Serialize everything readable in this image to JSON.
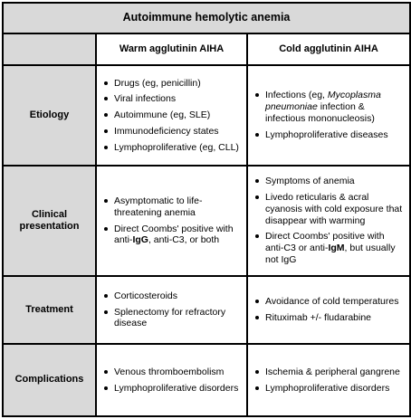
{
  "title": "Autoimmune hemolytic anemia",
  "columns": [
    "Warm agglutinin AIHA",
    "Cold agglutinin AIHA"
  ],
  "rows": [
    {
      "label": "Etiology",
      "warm": [
        "Drugs (eg, penicillin)",
        "Viral infections",
        "Autoimmune (eg, SLE)",
        "Immunodeficiency states",
        "Lymphoproliferative (eg, CLL)"
      ],
      "cold": [
        {
          "before": "Infections (eg, ",
          "em": "Mycoplasma pneumoniae",
          "after": " infection & infectious mononucleosis)"
        },
        "Lymphoproliferative diseases"
      ]
    },
    {
      "label": "Clinical presentation",
      "warm": [
        "Asymptomatic to life-threatening anemia",
        {
          "before": "Direct Coombs' positive with anti-",
          "strong": "IgG",
          "after": ", anti-C3, or both"
        }
      ],
      "cold": [
        "Symptoms of anemia",
        "Livedo reticularis & acral cyanosis with cold exposure that disappear with warming",
        {
          "before": "Direct Coombs' positive with anti-C3 or anti-",
          "strong": "IgM",
          "after": ", but usually not IgG"
        }
      ]
    },
    {
      "label": "Treatment",
      "warm": [
        "Corticosteroids",
        "Splenectomy for refractory disease"
      ],
      "cold": [
        "Avoidance of cold temperatures",
        "Rituximab +/- fludarabine"
      ]
    },
    {
      "label": "Complications",
      "warm": [
        "Venous thromboembolism",
        "Lymphoproliferative disorders"
      ],
      "cold": [
        "Ischemia & peripheral gangrene",
        "Lymphoproliferative disorders"
      ]
    }
  ]
}
